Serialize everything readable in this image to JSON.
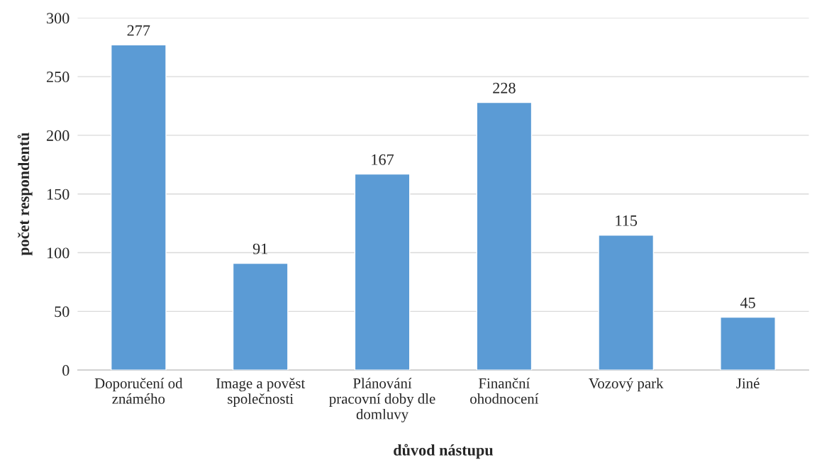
{
  "chart_data": {
    "type": "bar",
    "xlabel": "důvod nástupu",
    "ylabel": "počet respondentů",
    "categories": [
      "Doporučení od\nznámého",
      "Image a pověst\nspolečnosti",
      "Plánování\npracovní doby dle\ndomluvy",
      "Finanční\nohodnocení",
      "Vozový park",
      "Jiné"
    ],
    "values": [
      277,
      91,
      167,
      228,
      115,
      45
    ],
    "color": "#5b9bd5",
    "ylim": [
      0,
      300
    ],
    "yticks": [
      0,
      50,
      100,
      150,
      200,
      250,
      300
    ],
    "grid": "y",
    "data_labels": true,
    "legend": false
  }
}
